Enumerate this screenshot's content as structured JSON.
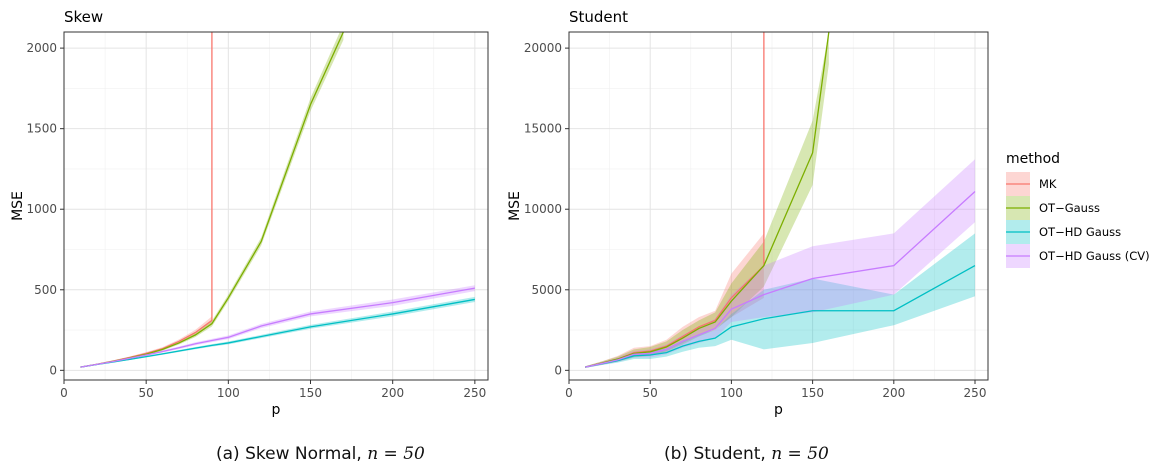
{
  "legend": {
    "title": "method",
    "entries": [
      {
        "name": "MK",
        "color": "#F8766D"
      },
      {
        "name": "OT−Gauss",
        "color": "#7CAE00"
      },
      {
        "name": "OT−HD Gauss",
        "color": "#00BFC4"
      },
      {
        "name": "OT−HD Gauss (CV)",
        "color": "#C77CFF"
      }
    ]
  },
  "captions": [
    {
      "prefix": "(a) Skew Normal, ",
      "math": "n = 50"
    },
    {
      "prefix": "(b) Student, ",
      "math": "n = 50"
    }
  ],
  "chart_data": [
    {
      "type": "line",
      "title": "Skew",
      "xlabel": "p",
      "ylabel": "MSE",
      "xlim": [
        0,
        258
      ],
      "ylim": [
        -60,
        2100
      ],
      "xticks": [
        0,
        50,
        100,
        150,
        200,
        250
      ],
      "yticks": [
        0,
        500,
        1000,
        1500,
        2000
      ],
      "grid": true,
      "series": [
        {
          "name": "MK",
          "color": "#F8766D",
          "x": [
            10,
            20,
            30,
            40,
            50,
            60,
            70,
            80,
            90,
            90
          ],
          "y": [
            20,
            38,
            58,
            80,
            105,
            135,
            180,
            235,
            310,
            2100
          ],
          "lower": [
            18,
            35,
            54,
            74,
            97,
            126,
            168,
            218,
            285,
            2100
          ],
          "upper": [
            22,
            41,
            62,
            86,
            113,
            144,
            192,
            252,
            335,
            2100
          ]
        },
        {
          "name": "OT−Gauss",
          "color": "#7CAE00",
          "x": [
            10,
            20,
            30,
            40,
            50,
            60,
            70,
            80,
            90,
            100,
            120,
            150,
            170
          ],
          "y": [
            20,
            37,
            56,
            77,
            100,
            130,
            170,
            220,
            290,
            450,
            800,
            1650,
            2100
          ],
          "lower": [
            18,
            34,
            52,
            72,
            94,
            122,
            160,
            207,
            272,
            430,
            775,
            1610,
            2050
          ],
          "upper": [
            22,
            40,
            60,
            82,
            106,
            138,
            180,
            233,
            308,
            470,
            825,
            1690,
            2150
          ]
        },
        {
          "name": "OT−HD Gauss",
          "color": "#00BFC4",
          "x": [
            10,
            20,
            30,
            40,
            50,
            60,
            70,
            80,
            90,
            100,
            120,
            150,
            200,
            250
          ],
          "y": [
            20,
            36,
            52,
            68,
            85,
            102,
            120,
            138,
            155,
            170,
            210,
            270,
            350,
            440
          ],
          "lower": [
            18,
            34,
            49,
            64,
            80,
            97,
            114,
            131,
            147,
            161,
            200,
            258,
            335,
            424
          ],
          "upper": [
            22,
            38,
            55,
            72,
            90,
            107,
            126,
            145,
            163,
            179,
            220,
            282,
            365,
            456
          ]
        },
        {
          "name": "OT−HD Gauss (CV)",
          "color": "#C77CFF",
          "x": [
            10,
            20,
            30,
            40,
            50,
            60,
            70,
            80,
            90,
            100,
            120,
            150,
            200,
            250
          ],
          "y": [
            20,
            37,
            55,
            75,
            95,
            117,
            140,
            165,
            185,
            205,
            275,
            350,
            420,
            510
          ],
          "lower": [
            18,
            34,
            51,
            70,
            89,
            110,
            132,
            156,
            175,
            194,
            262,
            335,
            400,
            492
          ],
          "upper": [
            22,
            40,
            59,
            80,
            101,
            124,
            148,
            174,
            195,
            216,
            288,
            365,
            440,
            528
          ]
        }
      ]
    },
    {
      "type": "line",
      "title": "Student",
      "xlabel": "p",
      "ylabel": "MSE",
      "xlim": [
        0,
        258
      ],
      "ylim": [
        -600,
        21000
      ],
      "xticks": [
        0,
        50,
        100,
        150,
        200,
        250
      ],
      "yticks": [
        0,
        5000,
        10000,
        15000,
        20000
      ],
      "grid": true,
      "series": [
        {
          "name": "MK",
          "color": "#F8766D",
          "x": [
            10,
            20,
            30,
            40,
            50,
            60,
            70,
            80,
            90,
            100,
            120,
            120
          ],
          "y": [
            200,
            450,
            700,
            1100,
            1200,
            1500,
            2100,
            2700,
            3100,
            4500,
            6500,
            21000
          ],
          "lower": [
            150,
            350,
            550,
            850,
            950,
            1200,
            1700,
            2200,
            2600,
            3300,
            4500,
            21000
          ],
          "upper": [
            250,
            550,
            900,
            1400,
            1500,
            1900,
            2700,
            3300,
            3700,
            6000,
            8500,
            21000
          ]
        },
        {
          "name": "OT−Gauss",
          "color": "#7CAE00",
          "x": [
            10,
            20,
            30,
            40,
            50,
            60,
            70,
            80,
            90,
            100,
            120,
            150,
            160
          ],
          "y": [
            200,
            450,
            700,
            1050,
            1150,
            1450,
            2000,
            2600,
            3000,
            4300,
            6500,
            13500,
            21000
          ],
          "lower": [
            150,
            350,
            550,
            800,
            900,
            1150,
            1600,
            2100,
            2500,
            3300,
            5200,
            11500,
            19000
          ],
          "upper": [
            250,
            550,
            850,
            1300,
            1450,
            1800,
            2500,
            3100,
            3600,
            5400,
            8000,
            15500,
            21000
          ]
        },
        {
          "name": "OT−HD Gauss",
          "color": "#00BFC4",
          "x": [
            10,
            20,
            30,
            40,
            50,
            60,
            70,
            80,
            90,
            100,
            120,
            150,
            200,
            250
          ],
          "y": [
            200,
            400,
            600,
            900,
            950,
            1100,
            1500,
            1800,
            2000,
            2700,
            3200,
            3700,
            3700,
            6500
          ],
          "lower": [
            150,
            320,
            480,
            700,
            700,
            850,
            1150,
            1400,
            1500,
            1900,
            1300,
            1700,
            2800,
            4600
          ],
          "upper": [
            250,
            480,
            720,
            1100,
            1200,
            1350,
            1850,
            2200,
            2500,
            3500,
            5000,
            5700,
            4700,
            8500
          ]
        },
        {
          "name": "OT−HD Gauss (CV)",
          "color": "#C77CFF",
          "x": [
            10,
            20,
            30,
            40,
            50,
            60,
            70,
            80,
            90,
            100,
            120,
            150,
            200,
            250
          ],
          "y": [
            200,
            420,
            650,
            1000,
            1050,
            1300,
            1800,
            2200,
            2600,
            3800,
            4700,
            5700,
            6500,
            11100
          ],
          "lower": [
            150,
            330,
            520,
            800,
            800,
            1000,
            1400,
            1700,
            2000,
            3000,
            3300,
            3600,
            4700,
            9200
          ],
          "upper": [
            250,
            520,
            800,
            1200,
            1300,
            1600,
            2200,
            2700,
            3200,
            4700,
            6500,
            7700,
            8500,
            13100
          ]
        }
      ]
    }
  ]
}
